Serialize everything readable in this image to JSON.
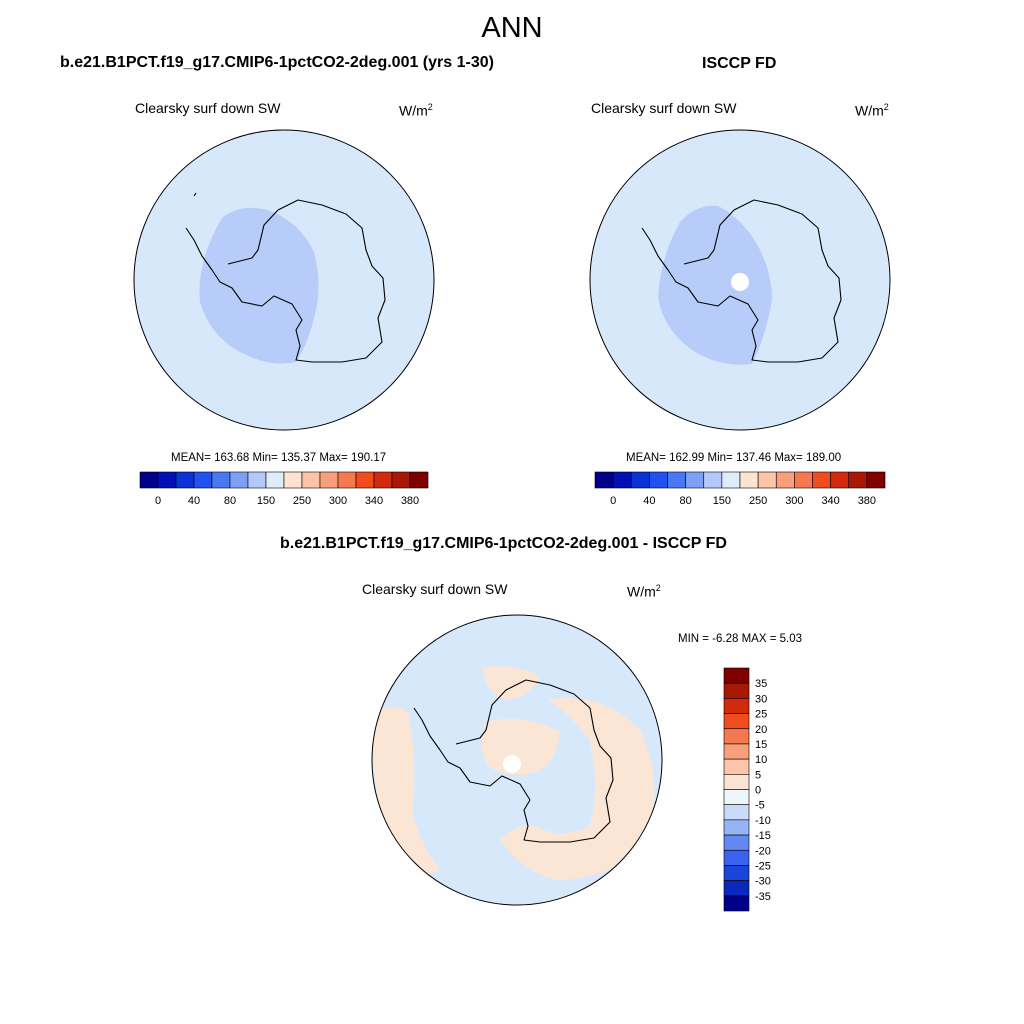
{
  "title": "ANN",
  "panels": [
    {
      "title": "b.e21.B1PCT.f19_g17.CMIP6-1pctCO2-2deg.001 (yrs 1-30)",
      "variable": "Clearsky surf down SW",
      "unit_base": "W/m",
      "unit_exp": "2",
      "stats": "MEAN= 163.68  Min= 135.37  Max= 190.17"
    },
    {
      "title": "ISCCP FD",
      "variable": "Clearsky surf down SW",
      "unit_base": "W/m",
      "unit_exp": "2",
      "stats": "MEAN= 162.99  Min= 137.46  Max= 189.00"
    },
    {
      "title": "b.e21.B1PCT.f19_g17.CMIP6-1pctCO2-2deg.001 - ISCCP FD",
      "variable": "Clearsky surf down SW",
      "unit_base": "W/m",
      "unit_exp": "2",
      "stats": "MIN =  -6.28 MAX =   5.03"
    }
  ],
  "colorbar_abs": {
    "colors": [
      "#00008a",
      "#0010b4",
      "#0a32d6",
      "#2052f0",
      "#4a78f2",
      "#7ea0f4",
      "#b4c8fa",
      "#deecfc",
      "#fde4d2",
      "#fcc4a8",
      "#f99f7c",
      "#f47850",
      "#f04d1e",
      "#d22a0c",
      "#a81804",
      "#800000"
    ],
    "tick_labels": [
      "0",
      "40",
      "80",
      "150",
      "250",
      "300",
      "340",
      "380"
    ]
  },
  "colorbar_diff": {
    "colors": [
      "#800000",
      "#a81804",
      "#d22a0c",
      "#f04d1e",
      "#f47850",
      "#f99f7c",
      "#fcc4a8",
      "#fde4d2",
      "#eef6fc",
      "#c8dcfa",
      "#94b4f6",
      "#6488f2",
      "#3a62ee",
      "#1a44dc",
      "#0a28bc",
      "#00008a"
    ],
    "tick_labels": [
      "35",
      "30",
      "25",
      "20",
      "15",
      "10",
      "5",
      "0",
      "-5",
      "-10",
      "-15",
      "-20",
      "-25",
      "-30",
      "-35"
    ]
  },
  "map_colors": {
    "ocean": "#d8e8fb",
    "interior": "#b8ccfa",
    "diff_positive": "#fbe6d6",
    "diff_negative": "#eef5fd",
    "missing": "#ffffff"
  }
}
